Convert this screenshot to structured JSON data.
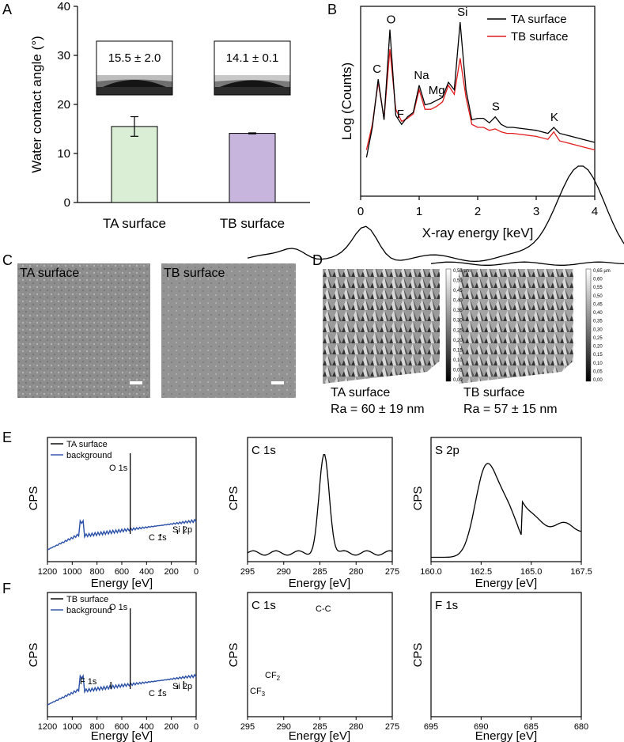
{
  "panels": {
    "A": "A",
    "B": "B",
    "C": "C",
    "D": "D",
    "E": "E",
    "F": "F"
  },
  "colors": {
    "ta_line": "#000000",
    "tb_line": "#e31a1c",
    "ta_bar": "#d9eed5",
    "tb_bar": "#c8b5dd",
    "survey_spectrum": "#2b50a8",
    "sem_gray": "#8a8a8a"
  },
  "chart_data": [
    {
      "id": "A",
      "type": "bar",
      "categories": [
        "TA surface",
        "TB surface"
      ],
      "values": [
        15.5,
        14.1
      ],
      "errors": [
        2.0,
        0.1
      ],
      "inset_labels": [
        "15.5 ± 2.0",
        "14.1 ± 0.1"
      ],
      "ylabel": "Water contact angle (°)",
      "ylim": [
        0,
        40
      ],
      "yticks": [
        "0",
        "10",
        "20",
        "30",
        "40"
      ]
    },
    {
      "id": "B",
      "type": "line",
      "xlabel": "X-ray energy [keV]",
      "ylabel": "Log (Counts)",
      "xlim": [
        0,
        4
      ],
      "xticks": [
        "0",
        "1",
        "2",
        "3",
        "4"
      ],
      "series": [
        {
          "name": "TA surface",
          "x": [
            0.1,
            0.2,
            0.3,
            0.4,
            0.5,
            0.6,
            0.7,
            0.8,
            0.9,
            1.0,
            1.1,
            1.2,
            1.3,
            1.4,
            1.5,
            1.6,
            1.7,
            1.8,
            1.9,
            2.0,
            2.1,
            2.2,
            2.3,
            2.4,
            2.5,
            2.6,
            2.8,
            3.0,
            3.2,
            3.3,
            3.4,
            3.6,
            3.8,
            4.0
          ],
          "y": [
            0.1,
            0.3,
            0.62,
            0.35,
            0.95,
            0.38,
            0.32,
            0.37,
            0.4,
            0.58,
            0.45,
            0.46,
            0.48,
            0.5,
            0.6,
            0.55,
            1.0,
            0.55,
            0.35,
            0.36,
            0.36,
            0.33,
            0.37,
            0.32,
            0.3,
            0.3,
            0.29,
            0.28,
            0.26,
            0.3,
            0.26,
            0.24,
            0.22,
            0.2
          ]
        },
        {
          "name": "TB surface",
          "x": [
            0.1,
            0.2,
            0.3,
            0.4,
            0.5,
            0.6,
            0.7,
            0.8,
            0.9,
            1.0,
            1.1,
            1.2,
            1.3,
            1.4,
            1.5,
            1.6,
            1.7,
            1.8,
            1.9,
            2.0,
            2.1,
            2.2,
            2.3,
            2.4,
            2.5,
            2.6,
            2.8,
            3.0,
            3.2,
            3.3,
            3.4,
            3.6,
            3.8,
            4.0
          ],
          "y": [
            0.15,
            0.32,
            0.6,
            0.36,
            0.82,
            0.42,
            0.34,
            0.36,
            0.39,
            0.55,
            0.42,
            0.42,
            0.44,
            0.47,
            0.58,
            0.52,
            0.76,
            0.5,
            0.32,
            0.3,
            0.3,
            0.28,
            0.29,
            0.27,
            0.26,
            0.26,
            0.25,
            0.24,
            0.22,
            0.27,
            0.21,
            0.19,
            0.17,
            0.15
          ]
        }
      ],
      "peak_labels": [
        {
          "text": "C",
          "x": 0.28
        },
        {
          "text": "O",
          "x": 0.52
        },
        {
          "text": "F",
          "x": 0.68
        },
        {
          "text": "Na",
          "x": 1.04
        },
        {
          "text": "Mg",
          "x": 1.3
        },
        {
          "text": "Si",
          "x": 1.74
        },
        {
          "text": "S",
          "x": 2.31
        },
        {
          "text": "K",
          "x": 3.31
        }
      ]
    }
  ],
  "panelC": {
    "left_label": "TA surface",
    "right_label": "TB surface"
  },
  "panelD": {
    "left_label": "TA surface",
    "left_ra": "Ra = 60 ± 19 nm",
    "right_label": "TB surface",
    "right_ra": "Ra = 57 ± 15 nm",
    "left_scale": [
      "0,55 µm",
      "0,50",
      "0,45",
      "0,40",
      "0,35",
      "0,30",
      "0,25",
      "0,20",
      "0,15",
      "0,10",
      "0,05",
      "0,00"
    ],
    "right_scale": [
      "0,65 µm",
      "0,60",
      "0,55",
      "0,50",
      "0,45",
      "0,40",
      "0,35",
      "0,30",
      "0,25",
      "0,20",
      "0,15",
      "0,10",
      "0,05",
      "0,00"
    ]
  },
  "panelE": {
    "survey_legend": [
      "TA surface",
      "background"
    ],
    "survey_peaks": [
      "O 1s",
      "C 1s",
      "Si 2p"
    ],
    "ylabel": "CPS",
    "xlabel": "Energy [eV]",
    "survey_xticks": [
      "1200",
      "1000",
      "800",
      "600",
      "400",
      "200",
      "0"
    ],
    "c1s_title": "C 1s",
    "c1s_xticks": [
      "295",
      "290",
      "285",
      "280",
      "275"
    ],
    "s2p_title": "S 2p",
    "s2p_xticks": [
      "160.0",
      "162.5",
      "165.0",
      "167.5"
    ]
  },
  "panelF": {
    "survey_legend": [
      "TB surface",
      "background"
    ],
    "survey_peaks": [
      "O 1s",
      "F 1s",
      "C 1s",
      "Si 2p"
    ],
    "ylabel": "CPS",
    "xlabel": "Energy [eV]",
    "survey_xticks": [
      "1200",
      "1000",
      "800",
      "600",
      "400",
      "200",
      "0"
    ],
    "c1s_title": "C 1s",
    "c1s_xticks": [
      "295",
      "290",
      "285",
      "280",
      "275"
    ],
    "c1s_peaks": {
      "cc": "C-C",
      "cf2_main": "CF",
      "cf2_sub": "2",
      "cf3_main": "CF",
      "cf3_sub": "3"
    },
    "f1s_title": "F 1s",
    "f1s_xticks": [
      "695",
      "690",
      "685",
      "680"
    ]
  }
}
